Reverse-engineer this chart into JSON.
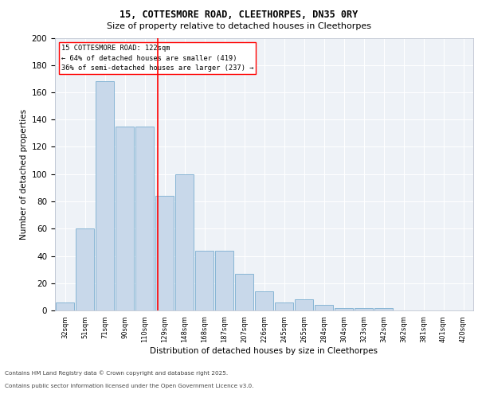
{
  "title_line1": "15, COTTESMORE ROAD, CLEETHORPES, DN35 0RY",
  "title_line2": "Size of property relative to detached houses in Cleethorpes",
  "xlabel": "Distribution of detached houses by size in Cleethorpes",
  "ylabel": "Number of detached properties",
  "bar_labels": [
    "32sqm",
    "51sqm",
    "71sqm",
    "90sqm",
    "110sqm",
    "129sqm",
    "148sqm",
    "168sqm",
    "187sqm",
    "207sqm",
    "226sqm",
    "245sqm",
    "265sqm",
    "284sqm",
    "304sqm",
    "323sqm",
    "342sqm",
    "362sqm",
    "381sqm",
    "401sqm",
    "420sqm"
  ],
  "bar_values": [
    6,
    60,
    168,
    135,
    135,
    84,
    100,
    44,
    44,
    27,
    14,
    6,
    8,
    4,
    2,
    2,
    2,
    0,
    0,
    0,
    0
  ],
  "bar_color": "#c8d8ea",
  "bar_edge_color": "#7aaed0",
  "vline_x": 4.65,
  "vline_color": "red",
  "annotation_text": "15 COTTESMORE ROAD: 122sqm\n← 64% of detached houses are smaller (419)\n36% of semi-detached houses are larger (237) →",
  "annotation_box_color": "white",
  "annotation_box_edge": "red",
  "ylim": [
    0,
    200
  ],
  "yticks": [
    0,
    20,
    40,
    60,
    80,
    100,
    120,
    140,
    160,
    180,
    200
  ],
  "footer_line1": "Contains HM Land Registry data © Crown copyright and database right 2025.",
  "footer_line2": "Contains public sector information licensed under the Open Government Licence v3.0.",
  "plot_bg_color": "#eef2f7"
}
